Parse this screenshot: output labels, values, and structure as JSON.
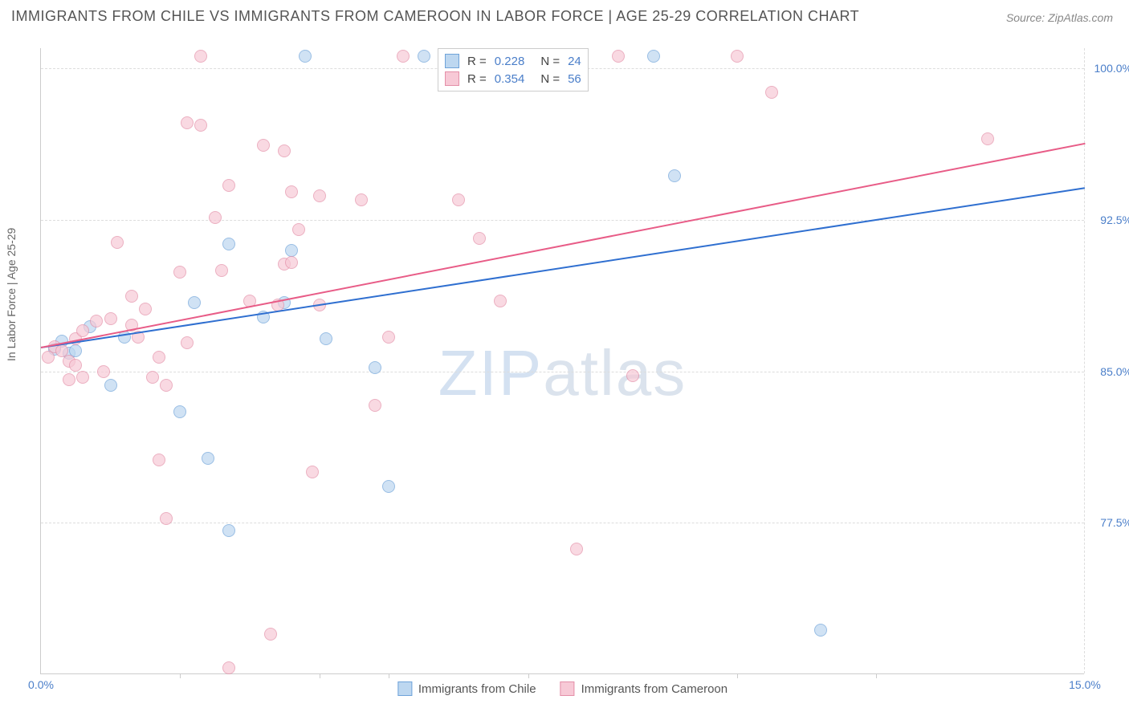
{
  "title": "IMMIGRANTS FROM CHILE VS IMMIGRANTS FROM CAMEROON IN LABOR FORCE | AGE 25-29 CORRELATION CHART",
  "source": "Source: ZipAtlas.com",
  "y_axis_label": "In Labor Force | Age 25-29",
  "watermark": {
    "part1": "ZIP",
    "part2": "atlas"
  },
  "chart": {
    "type": "scatter",
    "background_color": "#ffffff",
    "grid_color": "#dddddd",
    "axis_color": "#cccccc",
    "xlim": [
      0,
      15
    ],
    "ylim": [
      70,
      101
    ],
    "x_tick_labels": [
      {
        "value": 0,
        "label": "0.0%"
      },
      {
        "value": 15,
        "label": "15.0%"
      }
    ],
    "x_ticks_minor": [
      2,
      4,
      5,
      7,
      10,
      12
    ],
    "y_ticks": [
      {
        "value": 77.5,
        "label": "77.5%"
      },
      {
        "value": 85.0,
        "label": "85.0%"
      },
      {
        "value": 92.5,
        "label": "92.5%"
      },
      {
        "value": 100.0,
        "label": "100.0%"
      }
    ],
    "series": [
      {
        "name": "Immigrants from Chile",
        "fill": "#bdd7f0",
        "stroke": "#6fa3d9",
        "line_color": "#2f6fd0",
        "r_value": "0.228",
        "n_value": "24",
        "trend": {
          "x1": 0,
          "y1": 86.2,
          "x2": 15,
          "y2": 94.1
        },
        "points": [
          [
            0.2,
            86.1
          ],
          [
            0.3,
            86.5
          ],
          [
            0.4,
            85.9
          ],
          [
            0.5,
            86.0
          ],
          [
            0.7,
            87.2
          ],
          [
            1.0,
            84.3
          ],
          [
            1.2,
            86.7
          ],
          [
            2.2,
            88.4
          ],
          [
            2.0,
            83.0
          ],
          [
            2.4,
            80.7
          ],
          [
            2.7,
            91.3
          ],
          [
            2.7,
            77.1
          ],
          [
            3.2,
            87.7
          ],
          [
            3.5,
            88.4
          ],
          [
            3.6,
            91.0
          ],
          [
            3.8,
            100.6
          ],
          [
            4.1,
            86.6
          ],
          [
            4.8,
            85.2
          ],
          [
            5.0,
            79.3
          ],
          [
            5.5,
            100.6
          ],
          [
            5.8,
            100.6
          ],
          [
            8.8,
            100.6
          ],
          [
            9.1,
            94.7
          ],
          [
            11.2,
            72.2
          ]
        ]
      },
      {
        "name": "Immigrants from Cameroon",
        "fill": "#f7c9d6",
        "stroke": "#e48fa8",
        "line_color": "#e85c87",
        "r_value": "0.354",
        "n_value": "56",
        "trend": {
          "x1": 0,
          "y1": 86.2,
          "x2": 15,
          "y2": 96.3
        },
        "points": [
          [
            0.1,
            85.7
          ],
          [
            0.2,
            86.2
          ],
          [
            0.3,
            86.0
          ],
          [
            0.4,
            85.5
          ],
          [
            0.4,
            84.6
          ],
          [
            0.5,
            85.3
          ],
          [
            0.5,
            86.6
          ],
          [
            0.6,
            87.0
          ],
          [
            0.6,
            84.7
          ],
          [
            0.8,
            87.5
          ],
          [
            0.9,
            85.0
          ],
          [
            1.0,
            87.6
          ],
          [
            1.1,
            91.4
          ],
          [
            1.3,
            88.7
          ],
          [
            1.3,
            87.3
          ],
          [
            1.4,
            86.7
          ],
          [
            1.5,
            88.1
          ],
          [
            1.6,
            84.7
          ],
          [
            1.7,
            80.6
          ],
          [
            1.7,
            85.7
          ],
          [
            1.8,
            84.3
          ],
          [
            1.8,
            77.7
          ],
          [
            2.0,
            89.9
          ],
          [
            2.1,
            86.4
          ],
          [
            2.1,
            97.3
          ],
          [
            2.3,
            97.2
          ],
          [
            2.3,
            100.6
          ],
          [
            2.5,
            92.6
          ],
          [
            2.6,
            90.0
          ],
          [
            2.7,
            94.2
          ],
          [
            2.7,
            70.3
          ],
          [
            3.0,
            88.5
          ],
          [
            3.2,
            96.2
          ],
          [
            3.3,
            72.0
          ],
          [
            3.4,
            88.3
          ],
          [
            3.5,
            95.9
          ],
          [
            3.5,
            90.3
          ],
          [
            3.6,
            90.4
          ],
          [
            3.6,
            93.9
          ],
          [
            3.7,
            92.0
          ],
          [
            3.9,
            80.0
          ],
          [
            4.0,
            93.7
          ],
          [
            4.0,
            88.3
          ],
          [
            4.6,
            93.5
          ],
          [
            4.8,
            83.3
          ],
          [
            5.0,
            86.7
          ],
          [
            5.2,
            100.6
          ],
          [
            6.0,
            93.5
          ],
          [
            6.3,
            91.6
          ],
          [
            6.6,
            88.5
          ],
          [
            7.7,
            76.2
          ],
          [
            8.3,
            100.6
          ],
          [
            8.5,
            84.8
          ],
          [
            10.0,
            100.6
          ],
          [
            10.5,
            98.8
          ],
          [
            13.6,
            96.5
          ]
        ]
      }
    ]
  },
  "legend_bottom": {
    "items": [
      {
        "label": "Immigrants from Chile",
        "fill": "#bdd7f0",
        "stroke": "#6fa3d9"
      },
      {
        "label": "Immigrants from Cameroon",
        "fill": "#f7c9d6",
        "stroke": "#e48fa8"
      }
    ]
  }
}
